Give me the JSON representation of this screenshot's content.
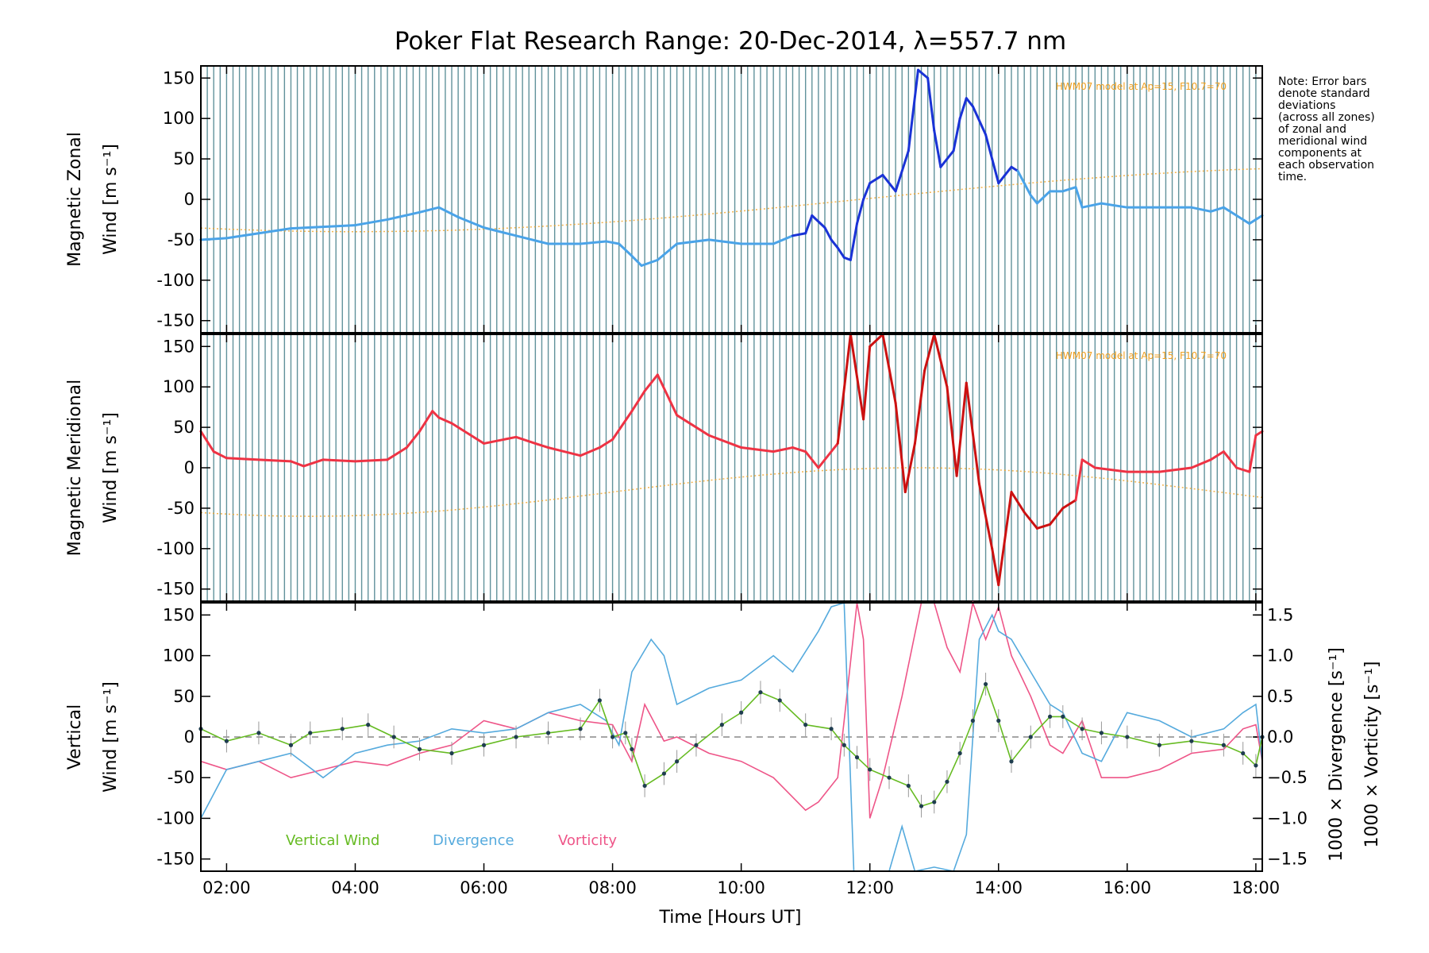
{
  "title": "Poker Flat Research Range: 20-Dec-2014, λ=557.7 nm",
  "note": [
    "Note: Error bars",
    "denote standard",
    "deviations",
    "(across all zones)",
    "of zonal and",
    "meridional wind",
    "components at",
    "each observation",
    "time."
  ],
  "colors": {
    "zonal_weak": "#4aa3e8",
    "zonal_strong": "#1a33d6",
    "meridional": "#ee3344",
    "meridional_strong": "#cc1111",
    "vertical": "#66bb22",
    "divergence": "#55aadd",
    "vorticity": "#ee5588",
    "model": "#f0a020",
    "zone_lines": "#2c6e7a"
  },
  "chart_data": [
    {
      "type": "line",
      "panel": "zonal",
      "ylabel_line1": "Magnetic Zonal",
      "ylabel_line2": "Wind [m s⁻¹]",
      "ylim": [
        -165,
        165
      ],
      "yticks": [
        150,
        100,
        50,
        0,
        -50,
        -100,
        -150
      ],
      "model_label": "HWM07 model at Ap=15, F10.7=70",
      "series": [
        {
          "x": [
            1.6,
            2.0,
            2.5,
            3.0,
            3.5,
            4.0,
            4.5,
            5.0,
            5.3,
            5.6,
            6.0,
            6.5,
            7.0,
            7.5,
            7.9,
            8.1,
            8.3,
            8.45,
            8.7,
            9.0,
            9.5,
            10.0,
            10.5,
            10.8,
            11.0,
            11.1,
            11.3,
            11.4,
            11.5,
            11.6,
            11.7,
            11.8,
            11.9,
            12.0,
            12.2,
            12.4,
            12.6,
            12.75,
            12.9,
            13.0,
            13.1,
            13.3,
            13.4,
            13.5,
            13.6,
            13.8,
            13.9,
            14.0,
            14.1,
            14.2,
            14.3,
            14.5,
            14.6,
            14.8,
            15.0,
            15.2,
            15.3,
            15.6,
            16.0,
            16.5,
            17.0,
            17.3,
            17.5,
            17.7,
            17.9,
            18.0,
            18.1
          ],
          "y": [
            -50,
            -48,
            -42,
            -36,
            -34,
            -32,
            -25,
            -16,
            -10,
            -22,
            -35,
            -45,
            -55,
            -55,
            -52,
            -55,
            -70,
            -82,
            -75,
            -55,
            -50,
            -55,
            -55,
            -45,
            -42,
            -20,
            -35,
            -50,
            -60,
            -72,
            -75,
            -30,
            0,
            20,
            30,
            10,
            60,
            160,
            150,
            85,
            40,
            60,
            100,
            125,
            115,
            80,
            50,
            20,
            30,
            40,
            35,
            5,
            -5,
            10,
            10,
            15,
            -10,
            -5,
            -10,
            -10,
            -10,
            -15,
            -10,
            -20,
            -30,
            -25,
            -20
          ]
        }
      ]
    },
    {
      "type": "line",
      "panel": "meridional",
      "ylabel_line1": "Magnetic Meridional",
      "ylabel_line2": "Wind [m s⁻¹]",
      "ylim": [
        -165,
        165
      ],
      "yticks": [
        150,
        100,
        50,
        0,
        -50,
        -100,
        -150
      ],
      "model_label": "HWM07 model at Ap=15, F10.7=70",
      "series": [
        {
          "x": [
            1.6,
            1.8,
            2.0,
            2.5,
            3.0,
            3.2,
            3.5,
            4.0,
            4.5,
            4.8,
            5.0,
            5.2,
            5.3,
            5.5,
            5.8,
            6.0,
            6.5,
            6.8,
            7.0,
            7.5,
            7.8,
            8.0,
            8.3,
            8.5,
            8.7,
            8.85,
            9.0,
            9.5,
            10.0,
            10.5,
            10.8,
            11.0,
            11.2,
            11.5,
            11.7,
            11.9,
            12.0,
            12.2,
            12.4,
            12.55,
            12.7,
            12.85,
            13.0,
            13.2,
            13.35,
            13.5,
            13.7,
            13.9,
            14.0,
            14.2,
            14.4,
            14.6,
            14.8,
            15.0,
            15.2,
            15.3,
            15.5,
            16.0,
            16.5,
            17.0,
            17.3,
            17.5,
            17.7,
            17.9,
            18.0,
            18.1
          ],
          "y": [
            45,
            20,
            12,
            10,
            8,
            2,
            10,
            8,
            10,
            25,
            45,
            70,
            62,
            55,
            40,
            30,
            38,
            30,
            25,
            15,
            25,
            35,
            70,
            95,
            115,
            90,
            65,
            40,
            25,
            20,
            25,
            20,
            0,
            30,
            170,
            60,
            150,
            170,
            80,
            -30,
            30,
            120,
            165,
            100,
            -10,
            105,
            -20,
            -100,
            -145,
            -30,
            -55,
            -75,
            -70,
            -50,
            -40,
            10,
            0,
            -5,
            -5,
            0,
            10,
            20,
            0,
            -5,
            40,
            45
          ]
        }
      ]
    },
    {
      "type": "line",
      "panel": "vertical",
      "ylabel_line1": "Vertical",
      "ylabel_line2": "Wind [m s⁻¹]",
      "ylim": [
        -165,
        165
      ],
      "yticks": [
        150,
        100,
        50,
        0,
        -50,
        -100,
        -150
      ],
      "right_axis": {
        "label_div": "1000 × Divergence [s⁻¹]",
        "label_vor": "1000 × Vorticity [s⁻¹]",
        "ticks": [
          "1.5",
          "1.0",
          "0.5",
          "0.0",
          "−0.5",
          "−1.0",
          "−1.5"
        ],
        "tick_values": [
          1.5,
          1.0,
          0.5,
          0.0,
          -0.5,
          -1.0,
          -1.5
        ]
      },
      "legend": [
        "Vertical Wind",
        "Divergence",
        "Vorticity"
      ],
      "series": [
        {
          "name": "Vertical Wind",
          "x": [
            1.6,
            2.0,
            2.5,
            3.0,
            3.3,
            3.8,
            4.2,
            4.6,
            5.0,
            5.5,
            6.0,
            6.5,
            7.0,
            7.5,
            7.8,
            8.0,
            8.2,
            8.3,
            8.5,
            8.8,
            9.0,
            9.3,
            9.7,
            10.0,
            10.3,
            10.6,
            11.0,
            11.4,
            11.6,
            11.8,
            12.0,
            12.3,
            12.6,
            12.8,
            13.0,
            13.2,
            13.4,
            13.6,
            13.8,
            14.0,
            14.2,
            14.5,
            14.8,
            15.0,
            15.3,
            15.6,
            16.0,
            16.5,
            17.0,
            17.5,
            17.8,
            18.0,
            18.1
          ],
          "y": [
            10,
            -5,
            5,
            -10,
            5,
            10,
            15,
            0,
            -15,
            -20,
            -10,
            0,
            5,
            10,
            45,
            0,
            5,
            -15,
            -60,
            -45,
            -30,
            -10,
            15,
            30,
            55,
            45,
            15,
            10,
            -10,
            -25,
            -40,
            -50,
            -60,
            -85,
            -80,
            -55,
            -20,
            20,
            65,
            20,
            -30,
            0,
            25,
            25,
            10,
            5,
            0,
            -10,
            -5,
            -10,
            -20,
            -35,
            0
          ]
        },
        {
          "name": "Divergence",
          "x": [
            1.6,
            2.0,
            2.5,
            3.0,
            3.5,
            4.0,
            4.5,
            5.0,
            5.5,
            6.0,
            6.5,
            7.0,
            7.5,
            7.9,
            8.1,
            8.3,
            8.6,
            8.8,
            9.0,
            9.5,
            10.0,
            10.5,
            10.8,
            11.2,
            11.4,
            11.6,
            11.75,
            11.8,
            12.0,
            12.3,
            12.5,
            12.7,
            13.0,
            13.3,
            13.5,
            13.7,
            13.9,
            14.0,
            14.2,
            14.5,
            14.8,
            15.0,
            15.3,
            15.6,
            16.0,
            16.5,
            17.0,
            17.5,
            17.8,
            18.0,
            18.1
          ],
          "y": [
            -1.0,
            -0.4,
            -0.3,
            -0.2,
            -0.5,
            -0.2,
            -0.1,
            -0.05,
            0.1,
            0.05,
            0.1,
            0.3,
            0.4,
            0.2,
            -0.1,
            0.8,
            1.2,
            1.0,
            0.4,
            0.6,
            0.7,
            1.0,
            0.8,
            1.3,
            1.6,
            1.8,
            -1.8,
            -1.8,
            -1.8,
            -1.8,
            -1.1,
            -1.7,
            -1.6,
            -1.8,
            -1.2,
            1.2,
            1.5,
            1.3,
            1.2,
            0.8,
            0.4,
            0.3,
            -0.2,
            -0.3,
            0.3,
            0.2,
            0.0,
            0.1,
            0.3,
            0.4,
            -0.3
          ]
        },
        {
          "name": "Vorticity",
          "x": [
            1.6,
            2.0,
            2.5,
            3.0,
            3.5,
            4.0,
            4.5,
            5.0,
            5.5,
            6.0,
            6.5,
            7.0,
            7.5,
            8.0,
            8.3,
            8.5,
            8.8,
            9.0,
            9.5,
            10.0,
            10.5,
            11.0,
            11.2,
            11.5,
            11.6,
            11.8,
            11.9,
            12.0,
            12.2,
            12.5,
            12.8,
            13.0,
            13.2,
            13.4,
            13.6,
            13.8,
            14.0,
            14.2,
            14.5,
            14.8,
            15.0,
            15.3,
            15.6,
            16.0,
            16.5,
            17.0,
            17.5,
            17.8,
            18.0,
            18.1
          ],
          "y": [
            -0.3,
            -0.4,
            -0.3,
            -0.5,
            -0.4,
            -0.3,
            -0.35,
            -0.2,
            -0.1,
            0.2,
            0.1,
            0.3,
            0.2,
            0.15,
            -0.3,
            0.4,
            -0.05,
            0.0,
            -0.2,
            -0.3,
            -0.5,
            -0.9,
            -0.8,
            -0.5,
            0.2,
            1.8,
            1.2,
            -1.0,
            -0.5,
            0.5,
            1.8,
            1.7,
            1.1,
            0.8,
            1.8,
            1.2,
            1.6,
            1.0,
            0.5,
            -0.1,
            -0.2,
            0.2,
            -0.5,
            -0.5,
            -0.4,
            -0.2,
            -0.15,
            0.1,
            0.15,
            -0.3
          ]
        }
      ]
    }
  ],
  "xaxis": {
    "label": "Time [Hours UT]",
    "xlim": [
      1.6,
      18.1
    ],
    "ticks": [
      "02:00",
      "04:00",
      "06:00",
      "08:00",
      "10:00",
      "12:00",
      "14:00",
      "16:00",
      "18:00"
    ],
    "tick_values": [
      2,
      4,
      6,
      8,
      10,
      12,
      14,
      16,
      18
    ]
  }
}
